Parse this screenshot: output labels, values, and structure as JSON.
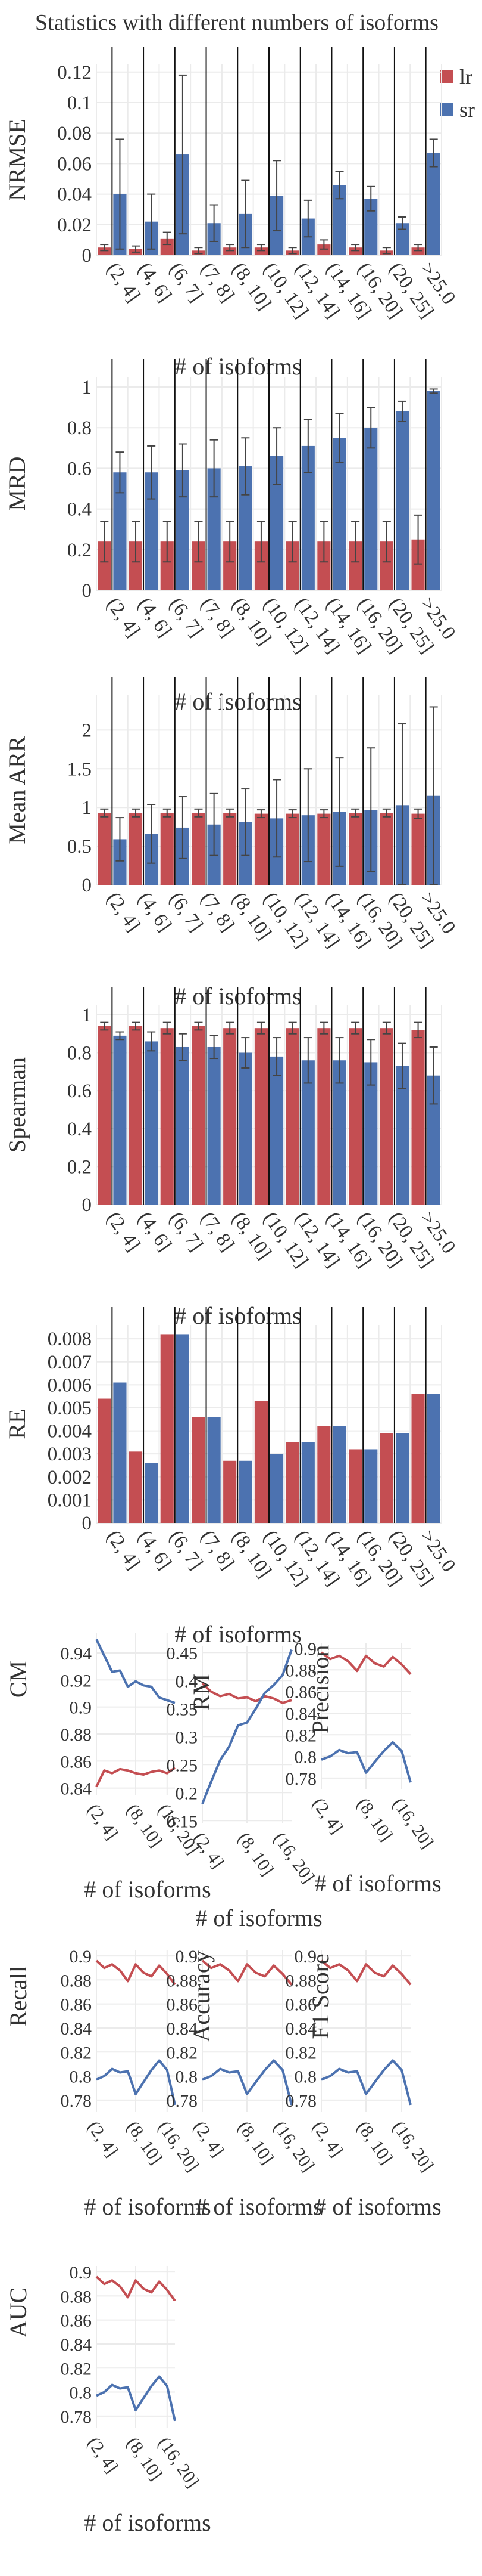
{
  "title": "Statistics with different numbers of isoforms",
  "legend": [
    {
      "name": "lr",
      "color": "#c44e52"
    },
    {
      "name": "sr",
      "color": "#4c72b0"
    }
  ],
  "colors": {
    "lr": "#c44e52",
    "sr": "#4c72b0",
    "grid": "#ebebeb",
    "vline": "#111111",
    "errbar": "#444444"
  },
  "chart_data": [
    {
      "type": "bar",
      "ylabel": "NRMSE",
      "xlabel": "# of isoforms",
      "categories": [
        "(2, 4]",
        "(4, 6]",
        "(6, 7]",
        "(7, 8]",
        "(8, 10]",
        "(10, 12]",
        "(12, 14]",
        "(14, 16]",
        "(16, 20]",
        "(20, 25]",
        ">25.0"
      ],
      "ylim": [
        0,
        0.125
      ],
      "yticks": [
        0,
        0.02,
        0.04,
        0.06,
        0.08,
        0.1,
        0.12
      ],
      "ytick_labels": [
        "0",
        "0.02",
        "0.04",
        "0.06",
        "0.08",
        "0.1",
        "0.12"
      ],
      "series": [
        {
          "name": "lr",
          "values": [
            0.005,
            0.004,
            0.011,
            0.003,
            0.005,
            0.005,
            0.003,
            0.007,
            0.005,
            0.003,
            0.005
          ],
          "err": [
            0.002,
            0.002,
            0.004,
            0.002,
            0.002,
            0.002,
            0.002,
            0.003,
            0.002,
            0.002,
            0.002
          ]
        },
        {
          "name": "sr",
          "values": [
            0.04,
            0.022,
            0.066,
            0.021,
            0.027,
            0.039,
            0.024,
            0.046,
            0.037,
            0.021,
            0.067
          ],
          "err": [
            0.036,
            0.018,
            0.052,
            0.012,
            0.022,
            0.023,
            0.012,
            0.009,
            0.008,
            0.004,
            0.009
          ]
        }
      ]
    },
    {
      "type": "bar",
      "ylabel": "MRD",
      "xlabel": "# of isoforms",
      "categories": [
        "(2, 4]",
        "(4, 6]",
        "(6, 7]",
        "(7, 8]",
        "(8, 10]",
        "(10, 12]",
        "(12, 14]",
        "(14, 16]",
        "(16, 20]",
        "(20, 25]",
        ">25.0"
      ],
      "ylim": [
        0,
        1.05
      ],
      "yticks": [
        0,
        0.2,
        0.4,
        0.6,
        0.8,
        1
      ],
      "ytick_labels": [
        "0",
        "0.2",
        "0.4",
        "0.6",
        "0.8",
        "1"
      ],
      "series": [
        {
          "name": "lr",
          "values": [
            0.24,
            0.24,
            0.24,
            0.24,
            0.24,
            0.24,
            0.24,
            0.24,
            0.24,
            0.24,
            0.25
          ],
          "err": [
            0.1,
            0.1,
            0.1,
            0.1,
            0.1,
            0.1,
            0.1,
            0.1,
            0.1,
            0.1,
            0.12
          ]
        },
        {
          "name": "sr",
          "values": [
            0.58,
            0.58,
            0.59,
            0.6,
            0.61,
            0.66,
            0.71,
            0.75,
            0.8,
            0.88,
            0.98
          ],
          "err": [
            0.1,
            0.13,
            0.13,
            0.14,
            0.14,
            0.14,
            0.13,
            0.12,
            0.1,
            0.05,
            0.01
          ]
        }
      ]
    },
    {
      "type": "bar",
      "ylabel": "Mean ARR",
      "xlabel": "# of isoforms",
      "categories": [
        "(2, 4]",
        "(4, 6]",
        "(6, 7]",
        "(7, 8]",
        "(8, 10]",
        "(10, 12]",
        "(12, 14]",
        "(14, 16]",
        "(16, 20]",
        "(20, 25]",
        ">25.0"
      ],
      "ylim": [
        0,
        2.45
      ],
      "yticks": [
        0,
        0.5,
        1,
        1.5,
        2
      ],
      "ytick_labels": [
        "0",
        "0.5",
        "1",
        "1.5",
        "2"
      ],
      "series": [
        {
          "name": "lr",
          "values": [
            0.93,
            0.93,
            0.93,
            0.93,
            0.93,
            0.92,
            0.92,
            0.92,
            0.93,
            0.93,
            0.92
          ],
          "err": [
            0.05,
            0.05,
            0.05,
            0.05,
            0.05,
            0.05,
            0.05,
            0.05,
            0.05,
            0.05,
            0.06
          ]
        },
        {
          "name": "sr",
          "values": [
            0.59,
            0.66,
            0.74,
            0.78,
            0.81,
            0.86,
            0.9,
            0.94,
            0.97,
            1.03,
            1.15
          ],
          "err": [
            0.28,
            0.38,
            0.4,
            0.4,
            0.43,
            0.5,
            0.6,
            0.7,
            0.8,
            1.05,
            1.15
          ]
        }
      ]
    },
    {
      "type": "bar",
      "ylabel": "Spearman",
      "xlabel": "# of isoforms",
      "categories": [
        "(2, 4]",
        "(4, 6]",
        "(6, 7]",
        "(7, 8]",
        "(8, 10]",
        "(10, 12]",
        "(12, 14]",
        "(14, 16]",
        "(16, 20]",
        "(20, 25]",
        ">25.0"
      ],
      "ylim": [
        0,
        1.05
      ],
      "yticks": [
        0,
        0.2,
        0.4,
        0.6,
        0.8,
        1
      ],
      "ytick_labels": [
        "0",
        "0.2",
        "0.4",
        "0.6",
        "0.8",
        "1"
      ],
      "series": [
        {
          "name": "lr",
          "values": [
            0.94,
            0.94,
            0.93,
            0.94,
            0.93,
            0.93,
            0.93,
            0.93,
            0.93,
            0.93,
            0.92
          ],
          "err": [
            0.02,
            0.02,
            0.03,
            0.02,
            0.03,
            0.03,
            0.03,
            0.03,
            0.03,
            0.03,
            0.04
          ]
        },
        {
          "name": "sr",
          "values": [
            0.89,
            0.86,
            0.83,
            0.83,
            0.8,
            0.78,
            0.76,
            0.76,
            0.75,
            0.73,
            0.68
          ],
          "err": [
            0.02,
            0.05,
            0.07,
            0.06,
            0.08,
            0.1,
            0.12,
            0.12,
            0.12,
            0.12,
            0.15
          ]
        }
      ]
    },
    {
      "type": "bar",
      "ylabel": "RE",
      "xlabel": "# of isoforms",
      "categories": [
        "(2, 4]",
        "(4, 6]",
        "(6, 7]",
        "(7, 8]",
        "(8, 10]",
        "(10, 12]",
        "(12, 14]",
        "(14, 16]",
        "(16, 20]",
        "(20, 25]",
        ">25.0"
      ],
      "ylim": [
        0,
        0.0086
      ],
      "yticks": [
        0,
        0.001,
        0.002,
        0.003,
        0.004,
        0.005,
        0.006,
        0.007,
        0.008
      ],
      "ytick_labels": [
        "0",
        "0.001",
        "0.002",
        "0.003",
        "0.004",
        "0.005",
        "0.006",
        "0.007",
        "0.008"
      ],
      "series": [
        {
          "name": "lr",
          "values": [
            0.0054,
            0.0031,
            0.0082,
            0.0046,
            0.0027,
            0.0053,
            0.0035,
            0.0042,
            0.0032,
            0.0039,
            0.0056
          ]
        },
        {
          "name": "sr",
          "values": [
            0.0061,
            0.0026,
            0.0082,
            0.0046,
            0.0027,
            0.003,
            0.0035,
            0.0042,
            0.0032,
            0.0039,
            0.0056
          ]
        }
      ]
    },
    {
      "type": "line",
      "ylabel": "CM",
      "xlabel": "# of isoforms",
      "x": [
        0,
        1,
        2,
        3,
        4,
        5,
        6,
        7,
        8,
        9,
        10
      ],
      "xticks": [
        0,
        5,
        9
      ],
      "xtick_labels": [
        "(2, 4]",
        "(8, 10]",
        "(16, 20]"
      ],
      "ylim": [
        0.835,
        0.955
      ],
      "yticks": [
        0.84,
        0.86,
        0.88,
        0.9,
        0.92,
        0.94
      ],
      "ytick_labels": [
        "0.84",
        "0.86",
        "0.88",
        "0.9",
        "0.92",
        "0.94"
      ],
      "series": [
        {
          "name": "lr",
          "values": [
            0.841,
            0.853,
            0.851,
            0.854,
            0.853,
            0.851,
            0.85,
            0.852,
            0.853,
            0.851,
            0.855
          ]
        },
        {
          "name": "sr",
          "values": [
            0.95,
            0.938,
            0.926,
            0.927,
            0.915,
            0.919,
            0.916,
            0.915,
            0.907,
            0.905,
            0.903
          ]
        }
      ]
    },
    {
      "type": "line",
      "ylabel": "RM",
      "xlabel": "# of isoforms",
      "x": [
        0,
        1,
        2,
        3,
        4,
        5,
        6,
        7,
        8,
        9,
        10
      ],
      "xticks": [
        0,
        5,
        9
      ],
      "xtick_labels": [
        "(2, 4]",
        "(8, 10]",
        "(16, 20]"
      ],
      "ylim": [
        0.145,
        0.462
      ],
      "yticks": [
        0.15,
        0.2,
        0.25,
        0.3,
        0.35,
        0.4,
        0.45
      ],
      "ytick_labels": [
        "0.15",
        "0.2",
        "0.25",
        "0.3",
        "0.35",
        "0.4",
        "0.45"
      ],
      "series": [
        {
          "name": "lr",
          "values": [
            0.395,
            0.38,
            0.372,
            0.376,
            0.368,
            0.37,
            0.363,
            0.372,
            0.368,
            0.36,
            0.365
          ]
        },
        {
          "name": "sr",
          "values": [
            0.18,
            0.22,
            0.258,
            0.282,
            0.32,
            0.325,
            0.35,
            0.378,
            0.392,
            0.41,
            0.455
          ]
        }
      ]
    },
    {
      "type": "line",
      "ylabel": "Precision",
      "xlabel": "# of isoforms",
      "x": [
        0,
        1,
        2,
        3,
        4,
        5,
        6,
        7,
        8,
        9,
        10
      ],
      "xticks": [
        0,
        5,
        9
      ],
      "xtick_labels": [
        "(2, 4]",
        "(8, 10]",
        "(16, 20]"
      ],
      "ylim": [
        0.77,
        0.905
      ],
      "yticks": [
        0.78,
        0.8,
        0.82,
        0.84,
        0.86,
        0.88,
        0.9
      ],
      "ytick_labels": [
        "0.78",
        "0.8",
        "0.82",
        "0.84",
        "0.86",
        "0.88",
        "0.9"
      ],
      "series": [
        {
          "name": "lr",
          "values": [
            0.896,
            0.89,
            0.893,
            0.888,
            0.879,
            0.893,
            0.886,
            0.883,
            0.892,
            0.885,
            0.876
          ]
        },
        {
          "name": "sr",
          "values": [
            0.797,
            0.8,
            0.806,
            0.803,
            0.804,
            0.785,
            0.795,
            0.805,
            0.813,
            0.805,
            0.776
          ]
        }
      ]
    },
    {
      "type": "line",
      "ylabel": "Recall",
      "xlabel": "# of isoforms",
      "x": [
        0,
        1,
        2,
        3,
        4,
        5,
        6,
        7,
        8,
        9,
        10
      ],
      "xticks": [
        0,
        5,
        9
      ],
      "xtick_labels": [
        "(2, 4]",
        "(8, 10]",
        "(16, 20]"
      ],
      "ylim": [
        0.77,
        0.905
      ],
      "yticks": [
        0.78,
        0.8,
        0.82,
        0.84,
        0.86,
        0.88,
        0.9
      ],
      "ytick_labels": [
        "0.78",
        "0.8",
        "0.82",
        "0.84",
        "0.86",
        "0.88",
        "0.9"
      ],
      "series": [
        {
          "name": "lr",
          "values": [
            0.896,
            0.89,
            0.893,
            0.888,
            0.879,
            0.893,
            0.886,
            0.883,
            0.892,
            0.885,
            0.876
          ]
        },
        {
          "name": "sr",
          "values": [
            0.797,
            0.8,
            0.806,
            0.803,
            0.804,
            0.785,
            0.795,
            0.805,
            0.813,
            0.805,
            0.776
          ]
        }
      ]
    },
    {
      "type": "line",
      "ylabel": "Accuracy",
      "xlabel": "# of isoforms",
      "x": [
        0,
        1,
        2,
        3,
        4,
        5,
        6,
        7,
        8,
        9,
        10
      ],
      "xticks": [
        0,
        5,
        9
      ],
      "xtick_labels": [
        "(2, 4]",
        "(8, 10]",
        "(16, 20]"
      ],
      "ylim": [
        0.77,
        0.905
      ],
      "yticks": [
        0.78,
        0.8,
        0.82,
        0.84,
        0.86,
        0.88,
        0.9
      ],
      "ytick_labels": [
        "0.78",
        "0.8",
        "0.82",
        "0.84",
        "0.86",
        "0.88",
        "0.9"
      ],
      "series": [
        {
          "name": "lr",
          "values": [
            0.896,
            0.89,
            0.893,
            0.888,
            0.879,
            0.893,
            0.886,
            0.883,
            0.892,
            0.885,
            0.876
          ]
        },
        {
          "name": "sr",
          "values": [
            0.797,
            0.8,
            0.806,
            0.803,
            0.804,
            0.785,
            0.795,
            0.805,
            0.813,
            0.805,
            0.776
          ]
        }
      ]
    },
    {
      "type": "line",
      "ylabel": "F1 Score",
      "xlabel": "# of isoforms",
      "x": [
        0,
        1,
        2,
        3,
        4,
        5,
        6,
        7,
        8,
        9,
        10
      ],
      "xticks": [
        0,
        5,
        9
      ],
      "xtick_labels": [
        "(2, 4]",
        "(8, 10]",
        "(16, 20]"
      ],
      "ylim": [
        0.77,
        0.905
      ],
      "yticks": [
        0.78,
        0.8,
        0.82,
        0.84,
        0.86,
        0.88,
        0.9
      ],
      "ytick_labels": [
        "0.78",
        "0.8",
        "0.82",
        "0.84",
        "0.86",
        "0.88",
        "0.9"
      ],
      "series": [
        {
          "name": "lr",
          "values": [
            0.896,
            0.89,
            0.893,
            0.888,
            0.879,
            0.893,
            0.886,
            0.883,
            0.892,
            0.885,
            0.876
          ]
        },
        {
          "name": "sr",
          "values": [
            0.797,
            0.8,
            0.806,
            0.803,
            0.804,
            0.785,
            0.795,
            0.805,
            0.813,
            0.805,
            0.776
          ]
        }
      ]
    },
    {
      "type": "line",
      "ylabel": "AUC",
      "xlabel": "# of isoforms",
      "x": [
        0,
        1,
        2,
        3,
        4,
        5,
        6,
        7,
        8,
        9,
        10
      ],
      "xticks": [
        0,
        5,
        9
      ],
      "xtick_labels": [
        "(2, 4]",
        "(8, 10]",
        "(16, 20]"
      ],
      "ylim": [
        0.77,
        0.905
      ],
      "yticks": [
        0.78,
        0.8,
        0.82,
        0.84,
        0.86,
        0.88,
        0.9
      ],
      "ytick_labels": [
        "0.78",
        "0.8",
        "0.82",
        "0.84",
        "0.86",
        "0.88",
        "0.9"
      ],
      "series": [
        {
          "name": "lr",
          "values": [
            0.896,
            0.89,
            0.893,
            0.888,
            0.879,
            0.893,
            0.886,
            0.883,
            0.892,
            0.885,
            0.876
          ]
        },
        {
          "name": "sr",
          "values": [
            0.797,
            0.8,
            0.806,
            0.803,
            0.804,
            0.785,
            0.795,
            0.805,
            0.813,
            0.805,
            0.776
          ]
        }
      ]
    }
  ]
}
